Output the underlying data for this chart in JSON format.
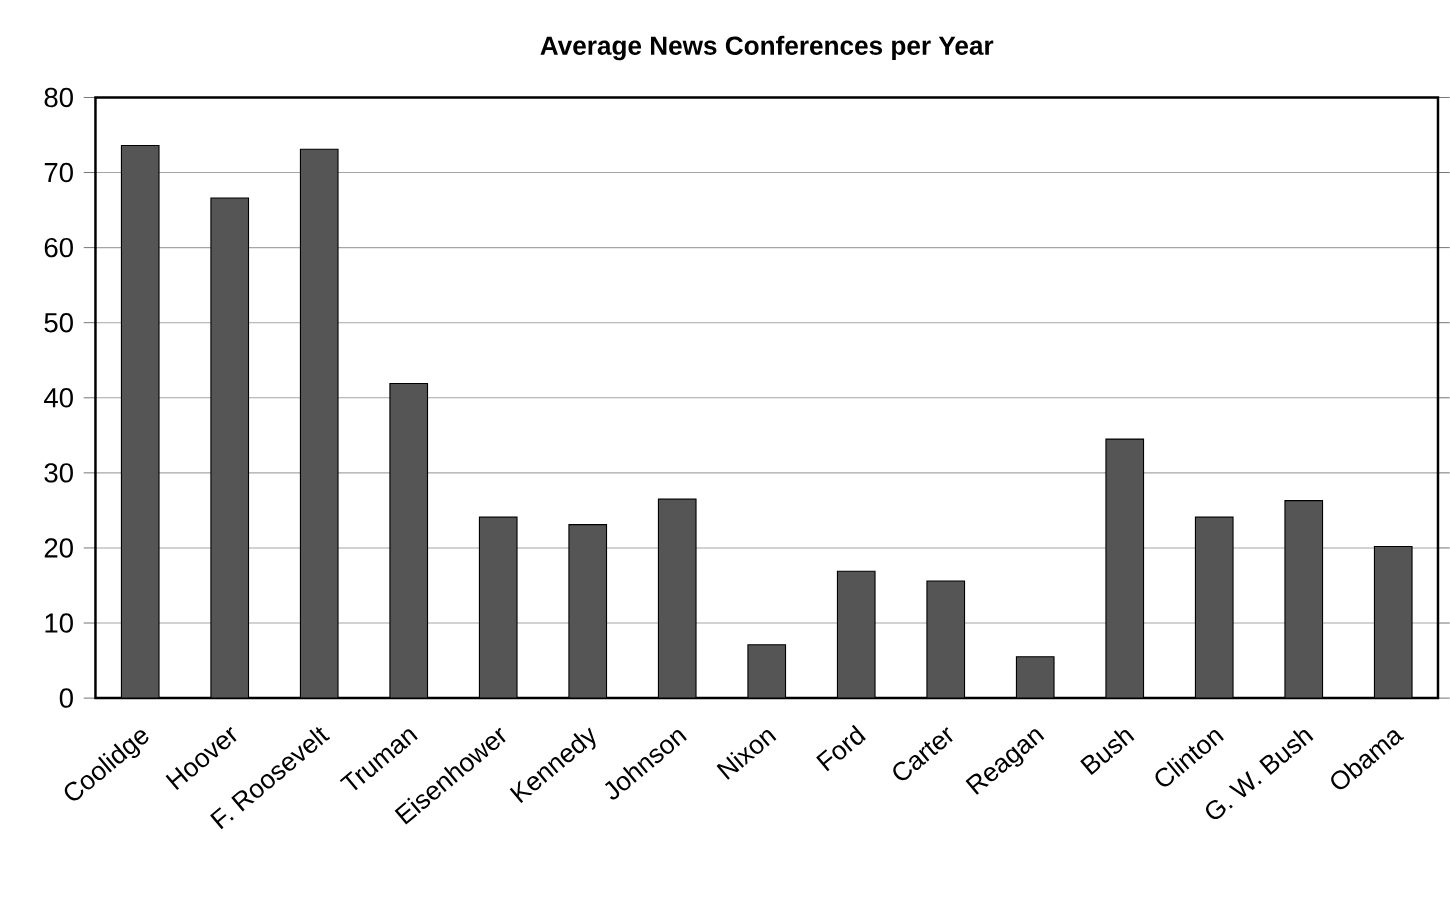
{
  "chart_data": {
    "type": "bar",
    "title": "Average News Conferences per Year",
    "categories": [
      "Coolidge",
      "Hoover",
      "F. Roosevelt",
      "Truman",
      "Eisenhower",
      "Kennedy",
      "Johnson",
      "Nixon",
      "Ford",
      "Carter",
      "Reagan",
      "Bush",
      "Clinton",
      "G. W. Bush",
      "Obama"
    ],
    "values": [
      73.6,
      66.6,
      73.1,
      41.9,
      24.1,
      23.1,
      26.5,
      7.1,
      16.9,
      15.6,
      5.5,
      34.5,
      24.1,
      26.3,
      20.2
    ],
    "color": "#555555",
    "ylim": [
      0,
      80
    ],
    "yticks": [
      0,
      10,
      20,
      30,
      40,
      50,
      60,
      70,
      80
    ],
    "grid": "y"
  }
}
